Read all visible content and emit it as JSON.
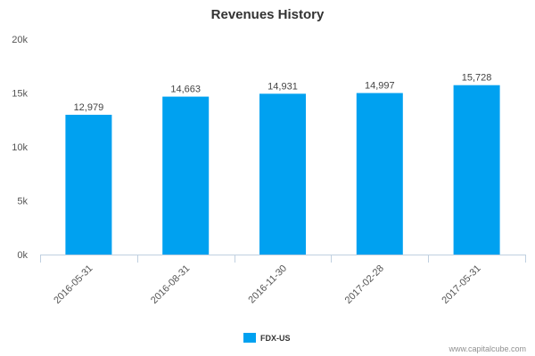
{
  "chart_data": {
    "type": "bar",
    "title": "Revenues History",
    "categories": [
      "2016-05-31",
      "2016-08-31",
      "2016-11-30",
      "2017-02-28",
      "2017-05-31"
    ],
    "series": [
      {
        "name": "FDX-US",
        "values": [
          12979,
          14663,
          14931,
          14997,
          15728
        ],
        "value_labels": [
          "12,979",
          "14,663",
          "14,931",
          "14,997",
          "15,728"
        ],
        "color": "#00a1f0"
      }
    ],
    "xlabel": "",
    "ylabel": "",
    "ylim": [
      0,
      20000
    ],
    "yticks": [
      0,
      5000,
      10000,
      15000,
      20000
    ],
    "ytick_labels": [
      "0k",
      "5k",
      "10k",
      "15k",
      "20k"
    ],
    "grid": false,
    "legend_position": "bottom-center"
  },
  "credit": "www.capitalcube.com",
  "colors": {
    "axis": "#c0d0e0",
    "text": "#555555"
  }
}
